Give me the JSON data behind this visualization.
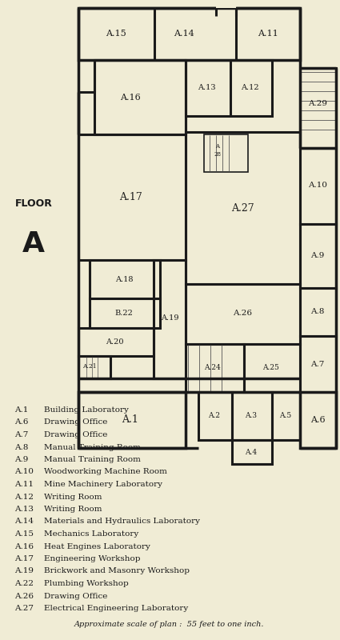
{
  "bg_color": "#f0ecd5",
  "wall_color": "#1a1a1a",
  "legend": [
    [
      "A.1",
      "Building Laboratory"
    ],
    [
      "A.6",
      "Drawing Office"
    ],
    [
      "A.7",
      "Drawing Office"
    ],
    [
      "A.8",
      "Manual Training Room"
    ],
    [
      "A.9",
      "Manual Training Room"
    ],
    [
      "A.10",
      "Woodworking Machine Room"
    ],
    [
      "A.11",
      "Mine Machinery Laboratory"
    ],
    [
      "A.12",
      "Writing Room"
    ],
    [
      "A.13",
      "Writing Room"
    ],
    [
      "A.14",
      "Materials and Hydraulics Laboratory"
    ],
    [
      "A.15",
      "Mechanics Laboratory"
    ],
    [
      "A.16",
      "Heat Engines Laboratory"
    ],
    [
      "A.17",
      "Engineering Workshop"
    ],
    [
      "A.19",
      "Brickwork and Masonry Workshop"
    ],
    [
      "A.22",
      "Plumbing Workshop"
    ],
    [
      "A.26",
      "Drawing Office"
    ],
    [
      "A.27",
      "Electrical Engineering Laboratory"
    ]
  ],
  "scale_note": "Approximate scale of plan :  55 feet to one inch."
}
